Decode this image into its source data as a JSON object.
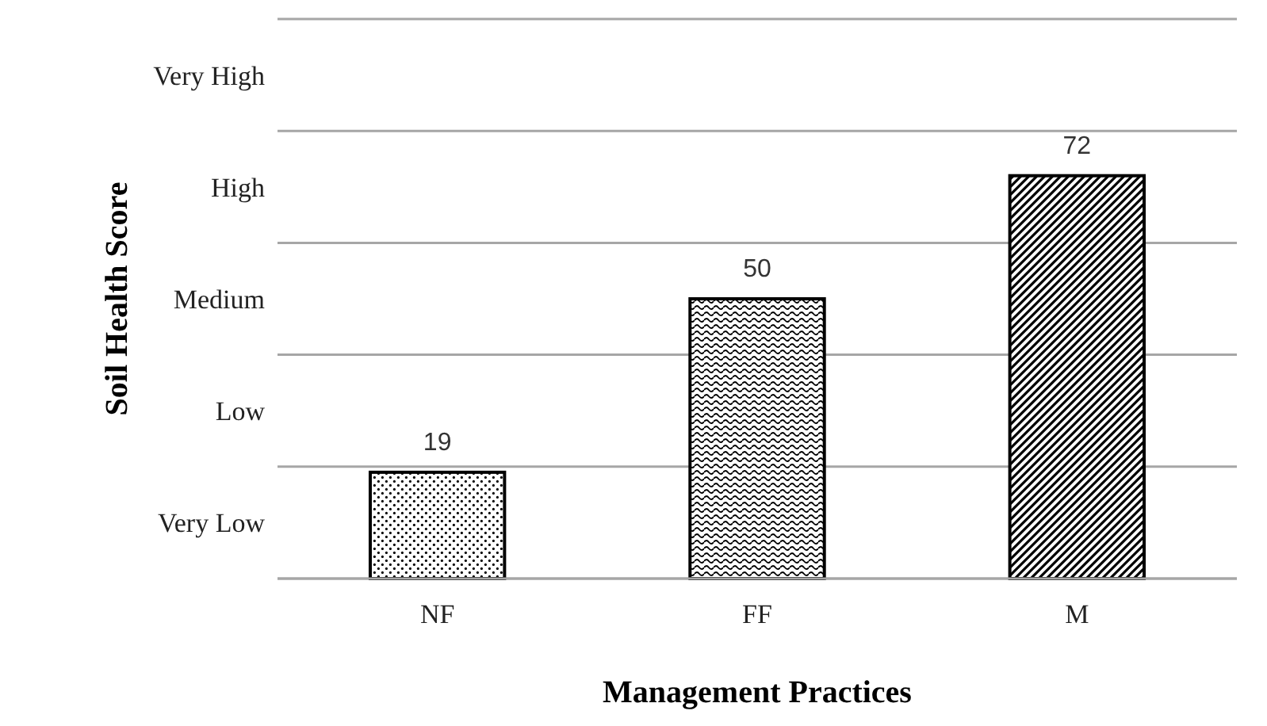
{
  "chart_data": {
    "type": "bar",
    "xlabel": "Management Practices",
    "ylabel": "Soil Health Score",
    "categories": [
      "NF",
      "FF",
      "M"
    ],
    "values": [
      19,
      50,
      72
    ],
    "colors": [
      "#000000",
      "#000000",
      "#000000"
    ],
    "ylim": [
      0,
      100
    ],
    "annotations": [
      "Very High",
      "High",
      "Medium",
      "Low",
      "Very Low"
    ],
    "grid": true,
    "data_labels": true
  }
}
